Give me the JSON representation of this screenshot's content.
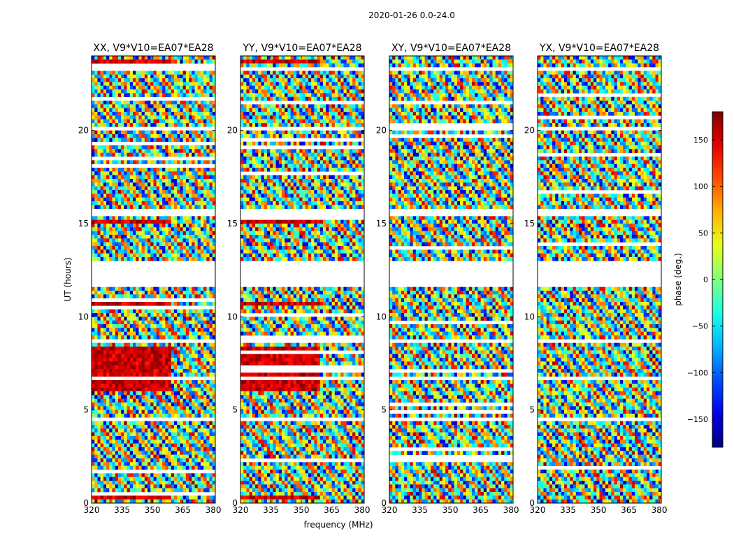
{
  "figure": {
    "suptitle": "2020-01-26 0.0-24.0",
    "xlabel": "frequency (MHz)",
    "ylabel": "UT (hours)",
    "colorbar_label": "phase (deg.)"
  },
  "chart_data": {
    "type": "heatmap",
    "title": "2020-01-26 0.0-24.0",
    "xlabel": "frequency (MHz)",
    "ylabel": "UT (hours)",
    "xlim": [
      320,
      381
    ],
    "ylim": [
      0,
      24
    ],
    "xticks": [
      320,
      335,
      350,
      365,
      380
    ],
    "yticks": [
      0,
      5,
      10,
      15,
      20
    ],
    "panels": [
      {
        "title": "XX, V9*V10=EA07*EA28",
        "polarization": "XX"
      },
      {
        "title": "YY, V9*V10=EA07*EA28",
        "polarization": "YY"
      },
      {
        "title": "XY, V9*V10=EA07*EA28",
        "polarization": "XY"
      },
      {
        "title": "YX, V9*V10=EA07*EA28",
        "polarization": "YX"
      }
    ],
    "flagged_time_ranges_hours": [
      [
        11.6,
        12.95
      ],
      [
        15.5,
        15.8
      ],
      [
        0.95,
        1.05
      ],
      [
        1.75,
        1.85
      ],
      [
        2.0,
        2.1
      ],
      [
        4.5,
        4.6
      ],
      [
        6.6,
        6.75
      ],
      [
        8.65,
        8.75
      ],
      [
        20.05,
        20.15
      ],
      [
        23.3,
        23.4
      ]
    ],
    "colorbar": {
      "label": "phase (deg.)",
      "vmin": -180,
      "vmax": 180,
      "ticks": [
        -150,
        -100,
        -50,
        0,
        50,
        100,
        150
      ],
      "tick_labels": [
        "−150",
        "−100",
        "−50",
        "0",
        "50",
        "100",
        "150"
      ],
      "colormap": "jet"
    }
  }
}
